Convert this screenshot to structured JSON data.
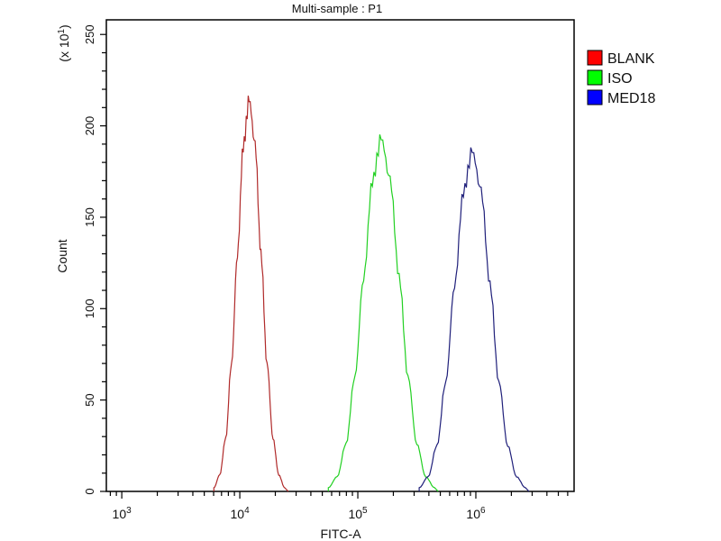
{
  "chart_data": {
    "type": "line",
    "title": "Multi-sample : P1",
    "xlabel": "FITC-A",
    "ylabel": "Count",
    "y_multiplier_label": "(x 10",
    "y_multiplier_exp": "1",
    "y_multiplier_close": ")",
    "x_scale": "log",
    "xlim": [
      740,
      6800000
    ],
    "ylim": [
      0,
      258
    ],
    "x_ticks": [
      {
        "base": "10",
        "exp": "3",
        "value": 1000
      },
      {
        "base": "10",
        "exp": "4",
        "value": 10000
      },
      {
        "base": "10",
        "exp": "5",
        "value": 100000
      },
      {
        "base": "10",
        "exp": "6",
        "value": 1000000
      }
    ],
    "y_ticks": [
      "0",
      "50",
      "100",
      "150",
      "200",
      "250"
    ],
    "grid": false,
    "legend_position": "right",
    "series": [
      {
        "name": "BLANK",
        "line_color": "#b02a2a",
        "legend_color": "#ff0000",
        "x": [
          6030,
          6760,
          7590,
          8510,
          9550,
          10700,
          12000,
          13500,
          15100,
          17000,
          19100,
          21400,
          24000
        ],
        "y": [
          2,
          9,
          29,
          70,
          130,
          189,
          214,
          189,
          130,
          70,
          29,
          9,
          2
        ]
      },
      {
        "name": "ISO",
        "line_color": "#22d022",
        "legend_color": "#00ff00",
        "x": [
          56200,
          66800,
          79400,
          94400,
          112000,
          133000,
          158000,
          188000,
          224000,
          266000,
          316000,
          376000,
          447000
        ],
        "y": [
          2,
          8,
          26,
          63,
          117,
          170,
          193,
          170,
          117,
          63,
          26,
          8,
          2
        ]
      },
      {
        "name": "MED18",
        "line_color": "#1f1f7a",
        "legend_color": "#0000ff",
        "x": [
          331000,
          394000,
          468000,
          556000,
          661000,
          785000,
          933000,
          1110000,
          1318000,
          1567000,
          1862000,
          2213000,
          2630000
        ],
        "y": [
          2,
          8,
          25,
          60,
          113,
          164,
          186,
          164,
          113,
          60,
          25,
          8,
          2
        ]
      }
    ]
  }
}
